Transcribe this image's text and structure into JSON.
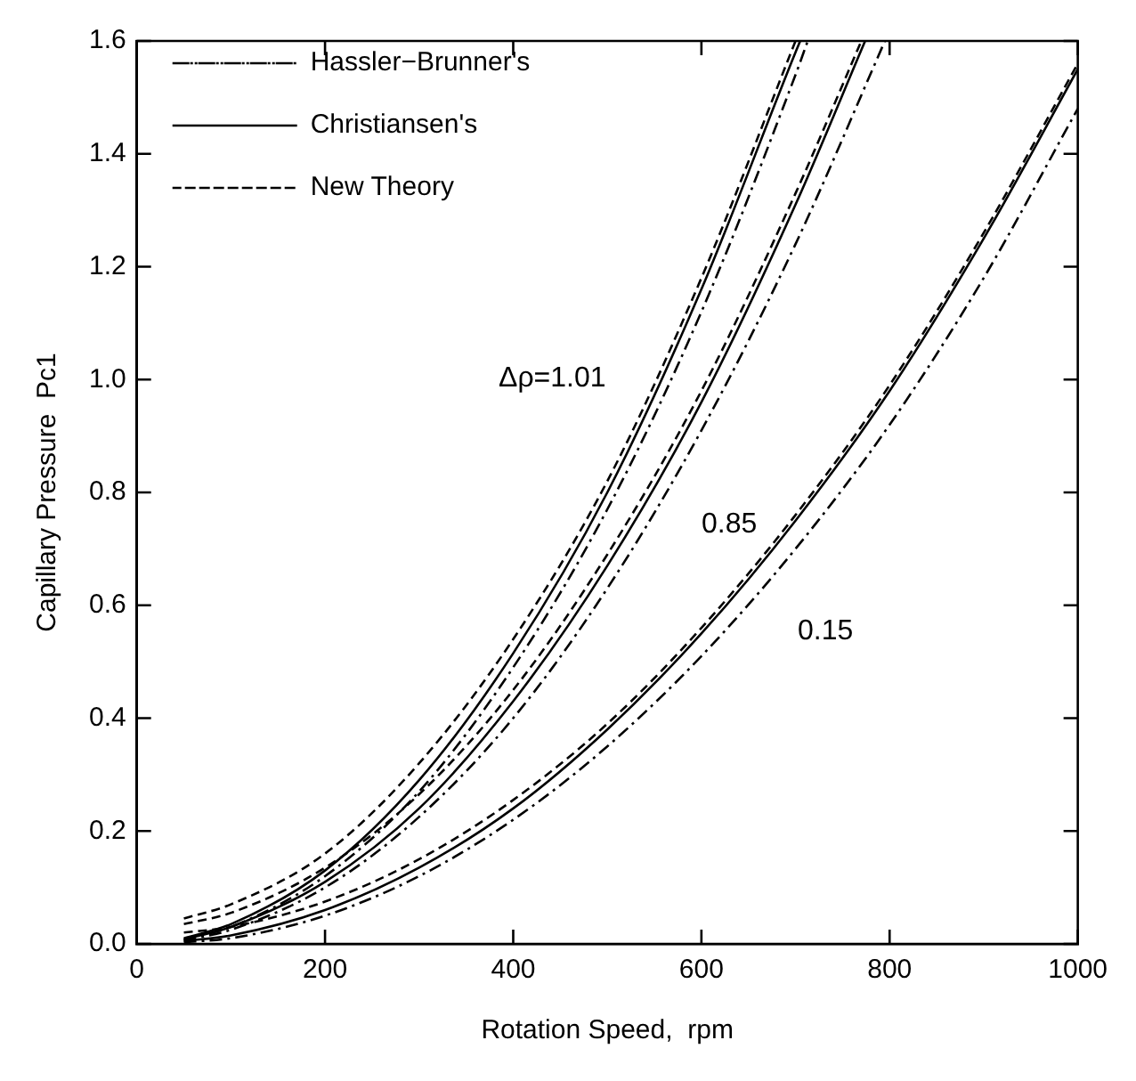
{
  "chart_data": {
    "type": "line",
    "xlabel": "Rotation Speed,  rpm",
    "ylabel": "Capillary Pressure  Pc1",
    "xlim": [
      0,
      1000
    ],
    "xticks": [
      0,
      200,
      400,
      600,
      800,
      1000
    ],
    "ylim": [
      0,
      1.6
    ],
    "yticks": [
      {
        "value": 0,
        "label": "0.0"
      },
      0.2,
      0.4,
      0.6,
      0.8,
      {
        "value": 1,
        "label": "1.0"
      },
      1.2,
      1.4,
      1.6
    ],
    "grid": false,
    "legend": "top left",
    "marker": "none",
    "annotations": [
      "Δρ=1.01",
      "0.85",
      "0.15"
    ],
    "series": [
      {
        "name": "Hassler−Brunner's",
        "color": "#000000",
        "line_style": "dotted",
        "x": [
          50,
          100,
          200,
          300,
          400,
          500,
          600,
          700,
          713
        ],
        "values": [
          0.008,
          0.03,
          0.12,
          0.27,
          0.49,
          0.77,
          1.12,
          1.54,
          1.6
        ]
      },
      {
        "name": "Christiansen's",
        "color": "#000000",
        "line_style": "solid",
        "x": [
          50,
          100,
          200,
          300,
          400,
          500,
          600,
          700,
          705
        ],
        "values": [
          0.01,
          0.035,
          0.13,
          0.29,
          0.515,
          0.8,
          1.16,
          1.58,
          1.6
        ]
      },
      {
        "name": "New Theory",
        "color": "#000000",
        "line_style": "dashed",
        "x": [
          50,
          100,
          200,
          300,
          400,
          500,
          600,
          700
        ],
        "values": [
          0.045,
          0.07,
          0.16,
          0.32,
          0.54,
          0.82,
          1.18,
          1.6
        ]
      },
      {
        "color": "#000000",
        "line_style": "dotted",
        "x": [
          50,
          100,
          200,
          300,
          400,
          500,
          600,
          700,
          795
        ],
        "values": [
          0.006,
          0.025,
          0.1,
          0.225,
          0.4,
          0.63,
          0.91,
          1.24,
          1.6
        ]
      },
      {
        "color": "#000000",
        "line_style": "solid",
        "x": [
          50,
          100,
          200,
          300,
          400,
          500,
          600,
          700,
          774
        ],
        "values": [
          0.008,
          0.03,
          0.11,
          0.24,
          0.43,
          0.67,
          0.96,
          1.31,
          1.6
        ]
      },
      {
        "color": "#000000",
        "line_style": "dashed",
        "x": [
          50,
          100,
          200,
          300,
          400,
          500,
          600,
          700,
          770
        ],
        "values": [
          0.035,
          0.055,
          0.135,
          0.265,
          0.45,
          0.69,
          0.98,
          1.33,
          1.6
        ]
      },
      {
        "color": "#000000",
        "line_style": "dotted",
        "x": [
          50,
          100,
          200,
          300,
          400,
          500,
          600,
          700,
          800,
          900,
          1000
        ],
        "values": [
          0.003,
          0.01,
          0.05,
          0.12,
          0.22,
          0.35,
          0.51,
          0.7,
          0.92,
          1.18,
          1.48
        ]
      },
      {
        "color": "#000000",
        "line_style": "solid",
        "x": [
          50,
          100,
          200,
          300,
          400,
          500,
          600,
          700,
          800,
          900,
          1000
        ],
        "values": [
          0.005,
          0.015,
          0.06,
          0.135,
          0.24,
          0.38,
          0.55,
          0.75,
          0.98,
          1.25,
          1.55
        ]
      },
      {
        "color": "#000000",
        "line_style": "dashed",
        "x": [
          50,
          100,
          200,
          300,
          400,
          500,
          600,
          700,
          800,
          900,
          1000
        ],
        "values": [
          0.02,
          0.03,
          0.075,
          0.15,
          0.255,
          0.39,
          0.56,
          0.76,
          0.99,
          1.26,
          1.56
        ]
      }
    ]
  }
}
